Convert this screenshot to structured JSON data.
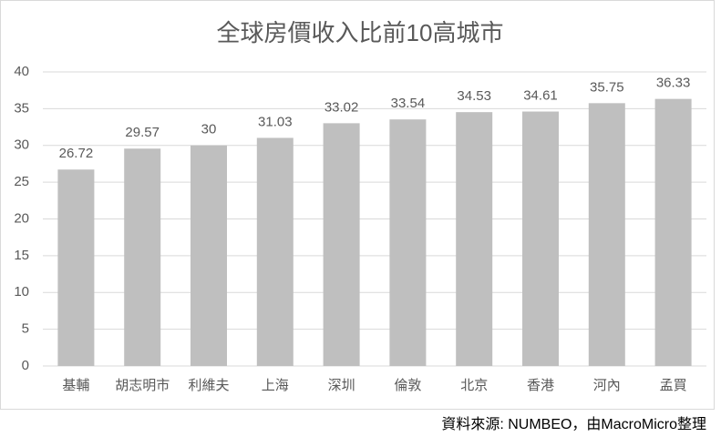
{
  "chart_data": {
    "type": "bar",
    "title": "全球房價收入比前10高城市",
    "categories": [
      "基輔",
      "胡志明市",
      "利維夫",
      "上海",
      "深圳",
      "倫敦",
      "北京",
      "香港",
      "河內",
      "孟買"
    ],
    "values": [
      26.72,
      29.57,
      30,
      31.03,
      33.02,
      33.54,
      34.53,
      34.61,
      35.75,
      36.33
    ],
    "color": "#bfbfbf",
    "ylim": [
      0,
      40
    ],
    "yticks": [
      0,
      5,
      10,
      15,
      20,
      25,
      30,
      35,
      40
    ],
    "grid": true,
    "source": "資料來源: NUMBEO，由MacroMicro整理"
  }
}
